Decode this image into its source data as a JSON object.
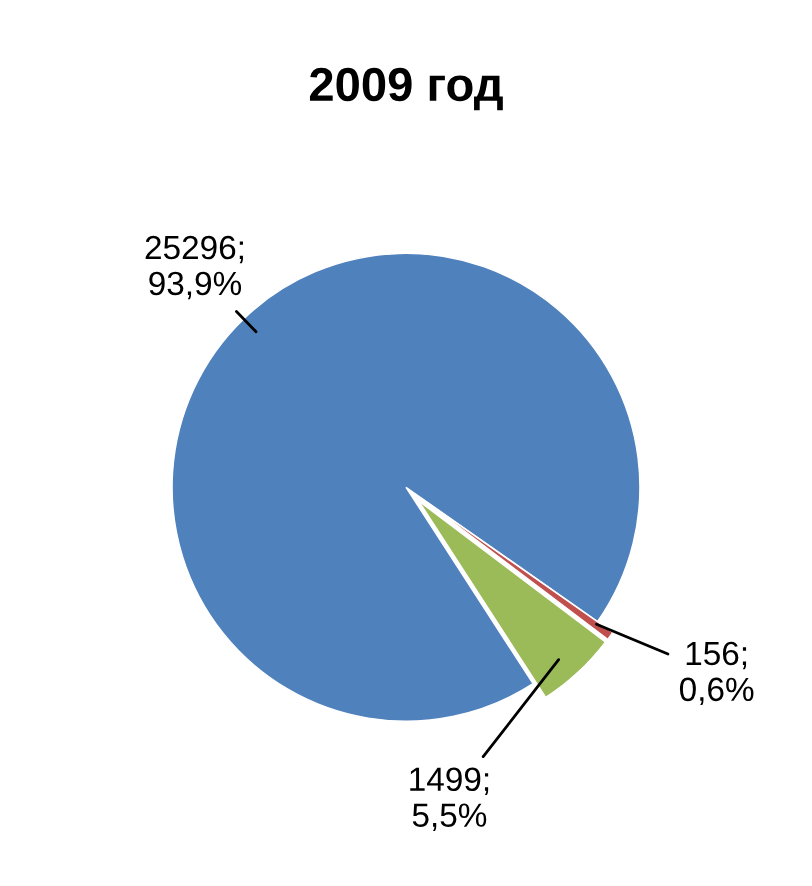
{
  "chart_data": {
    "type": "pie",
    "title": "2009 год",
    "categories": [
      null,
      null,
      null
    ],
    "values": [
      25296,
      1499,
      156
    ],
    "colors": [
      "#4f81bd",
      "#9bbb59",
      "#c0504d"
    ],
    "value_labels": [
      "25296;\n93,9%",
      "1499;\n5,5%",
      "156;\n0,6%"
    ],
    "legend": false
  }
}
